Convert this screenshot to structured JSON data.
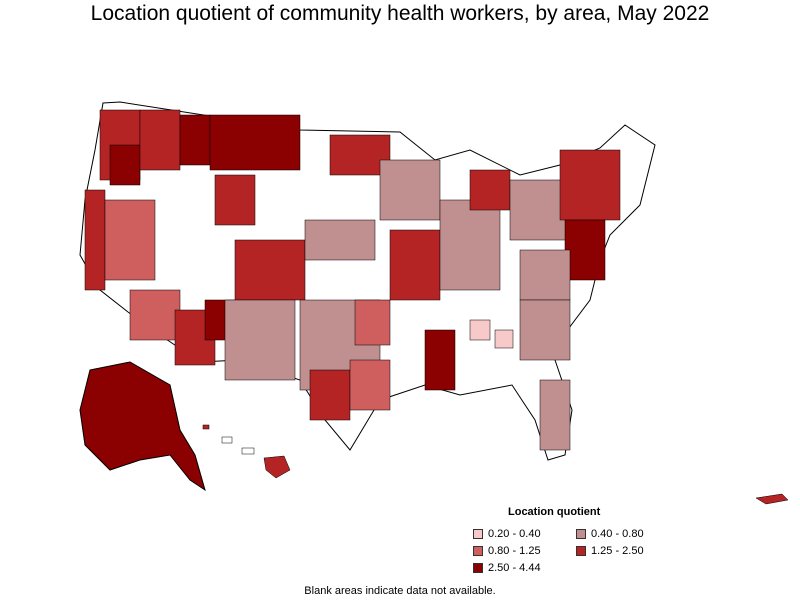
{
  "title": "Location quotient of community health workers, by area, May 2022",
  "legend": {
    "title": "Location quotient",
    "items": [
      {
        "label": "0.20 - 0.40",
        "color": "#f7c9c9"
      },
      {
        "label": "0.40 - 0.80",
        "color": "#c09090"
      },
      {
        "label": "0.80 - 1.25",
        "color": "#cf5f5f"
      },
      {
        "label": "1.25 - 2.50",
        "color": "#b52424"
      },
      {
        "label": "2.50 - 4.44",
        "color": "#8b0000"
      }
    ]
  },
  "footnote": "Blank areas indicate data not available.",
  "map_regions": [
    "Alaska",
    "Hawaii",
    "Puerto Rico",
    "Contiguous United States"
  ]
}
